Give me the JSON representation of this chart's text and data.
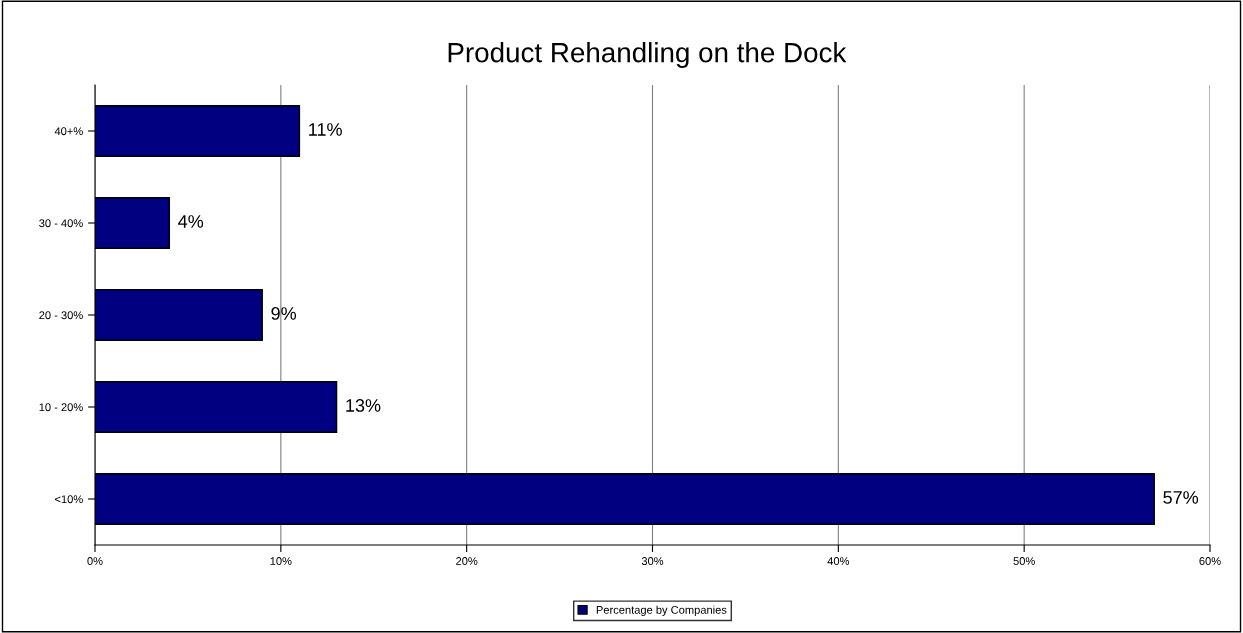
{
  "chart_data": {
    "type": "bar",
    "orientation": "horizontal",
    "title": "Product Rehandling on the Dock",
    "categories": [
      "40+%",
      "30 - 40%",
      "20 - 30%",
      "10 - 20%",
      "<10%"
    ],
    "series": [
      {
        "name": "Percentage by Companies",
        "color": "#000080",
        "values": [
          11,
          4,
          9,
          13,
          57
        ],
        "value_labels": [
          "11%",
          "4%",
          "9%",
          "13%",
          "57%"
        ]
      }
    ],
    "xlim": [
      0,
      60
    ],
    "xticks": [
      {
        "value": 0,
        "label": "0%"
      },
      {
        "value": 10,
        "label": "10%"
      },
      {
        "value": 20,
        "label": "20%"
      },
      {
        "value": 30,
        "label": "30%"
      },
      {
        "value": 40,
        "label": "40%"
      },
      {
        "value": 50,
        "label": "50%"
      },
      {
        "value": 60,
        "label": "60%"
      }
    ],
    "grid": "x",
    "legend": "bottom"
  }
}
